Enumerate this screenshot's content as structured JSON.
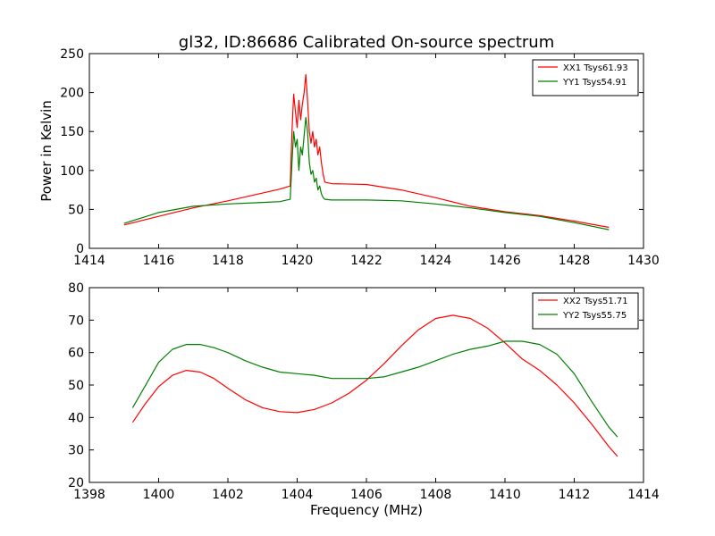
{
  "chart_data": [
    {
      "type": "line",
      "title": "gl32, ID:86686 Calibrated On-source spectrum",
      "xlabel": "",
      "ylabel": "Power in Kelvin",
      "xlim": [
        1414,
        1430
      ],
      "ylim": [
        0,
        250
      ],
      "xticks": [
        "1414",
        "1416",
        "1418",
        "1420",
        "1422",
        "1424",
        "1426",
        "1428",
        "1430"
      ],
      "yticks": [
        "0",
        "50",
        "100",
        "150",
        "200",
        "250"
      ],
      "legend": "top-right",
      "grid": false,
      "series": [
        {
          "name": "XX1 Tsys61.93",
          "color": "#ff0000",
          "x": [
            1415.0,
            1416.0,
            1417.0,
            1418.0,
            1419.0,
            1419.5,
            1419.8,
            1419.85,
            1419.9,
            1419.95,
            1420.0,
            1420.05,
            1420.1,
            1420.15,
            1420.2,
            1420.25,
            1420.3,
            1420.35,
            1420.4,
            1420.45,
            1420.5,
            1420.55,
            1420.6,
            1420.65,
            1420.7,
            1420.75,
            1420.8,
            1421.0,
            1422.0,
            1423.0,
            1424.0,
            1425.0,
            1426.0,
            1427.0,
            1428.0,
            1429.0
          ],
          "y": [
            30,
            41,
            52,
            61,
            71,
            76,
            80,
            150,
            198,
            175,
            155,
            190,
            165,
            185,
            200,
            223,
            190,
            150,
            135,
            150,
            130,
            140,
            120,
            130,
            110,
            95,
            85,
            83,
            82,
            75,
            65,
            54,
            47,
            42,
            35,
            27
          ]
        },
        {
          "name": "YY1 Tsys54.91",
          "color": "#008000",
          "x": [
            1415.0,
            1416.0,
            1417.0,
            1418.0,
            1419.0,
            1419.5,
            1419.8,
            1419.85,
            1419.9,
            1419.95,
            1420.0,
            1420.05,
            1420.1,
            1420.15,
            1420.2,
            1420.25,
            1420.3,
            1420.35,
            1420.4,
            1420.45,
            1420.5,
            1420.55,
            1420.6,
            1420.65,
            1420.7,
            1420.75,
            1420.8,
            1421.0,
            1422.0,
            1423.0,
            1424.0,
            1425.0,
            1426.0,
            1427.0,
            1428.0,
            1429.0
          ],
          "y": [
            32,
            46,
            54,
            57,
            59,
            60,
            63,
            110,
            150,
            130,
            140,
            100,
            130,
            120,
            145,
            168,
            150,
            110,
            95,
            100,
            85,
            90,
            75,
            80,
            70,
            65,
            63,
            62,
            62,
            61,
            57,
            52,
            46,
            41,
            33,
            24
          ]
        }
      ]
    },
    {
      "type": "line",
      "title": "",
      "xlabel": "Frequency (MHz)",
      "ylabel": "",
      "xlim": [
        1398,
        1414
      ],
      "ylim": [
        20,
        80
      ],
      "xticks": [
        "1398",
        "1400",
        "1402",
        "1404",
        "1406",
        "1408",
        "1410",
        "1412",
        "1414"
      ],
      "yticks": [
        "20",
        "30",
        "40",
        "50",
        "60",
        "70",
        "80"
      ],
      "legend": "top-right",
      "grid": false,
      "series": [
        {
          "name": "XX2 Tsys51.71",
          "color": "#ff0000",
          "x": [
            1399.25,
            1399.6,
            1400.0,
            1400.4,
            1400.8,
            1401.2,
            1401.6,
            1402.0,
            1402.5,
            1403.0,
            1403.5,
            1404.0,
            1404.5,
            1405.0,
            1405.5,
            1406.0,
            1406.5,
            1407.0,
            1407.5,
            1408.0,
            1408.5,
            1409.0,
            1409.5,
            1410.0,
            1410.5,
            1411.0,
            1411.5,
            1412.0,
            1412.5,
            1413.0,
            1413.25
          ],
          "y": [
            38.5,
            44,
            49.5,
            53,
            54.5,
            54,
            52,
            49,
            45.5,
            43,
            41.8,
            41.5,
            42.5,
            44.5,
            47.5,
            51.5,
            56.5,
            62,
            67,
            70.5,
            71.5,
            70.5,
            67.5,
            63,
            58,
            54.5,
            50,
            44.5,
            38,
            31,
            28
          ]
        },
        {
          "name": "YY2 Tsys55.75",
          "color": "#008000",
          "x": [
            1399.25,
            1399.6,
            1400.0,
            1400.4,
            1400.8,
            1401.2,
            1401.6,
            1402.0,
            1402.5,
            1403.0,
            1403.5,
            1404.0,
            1404.5,
            1405.0,
            1405.5,
            1406.0,
            1406.5,
            1407.0,
            1407.5,
            1408.0,
            1408.5,
            1409.0,
            1409.5,
            1410.0,
            1410.5,
            1411.0,
            1411.5,
            1412.0,
            1412.5,
            1413.0,
            1413.25
          ],
          "y": [
            43,
            49.5,
            57,
            61,
            62.5,
            62.5,
            61.5,
            60,
            57.5,
            55.5,
            54,
            53.5,
            53,
            52,
            52,
            52,
            52.5,
            54,
            55.5,
            57.5,
            59.5,
            61,
            62,
            63.5,
            63.5,
            62.5,
            59.5,
            53.5,
            45,
            37,
            34
          ]
        }
      ]
    }
  ]
}
